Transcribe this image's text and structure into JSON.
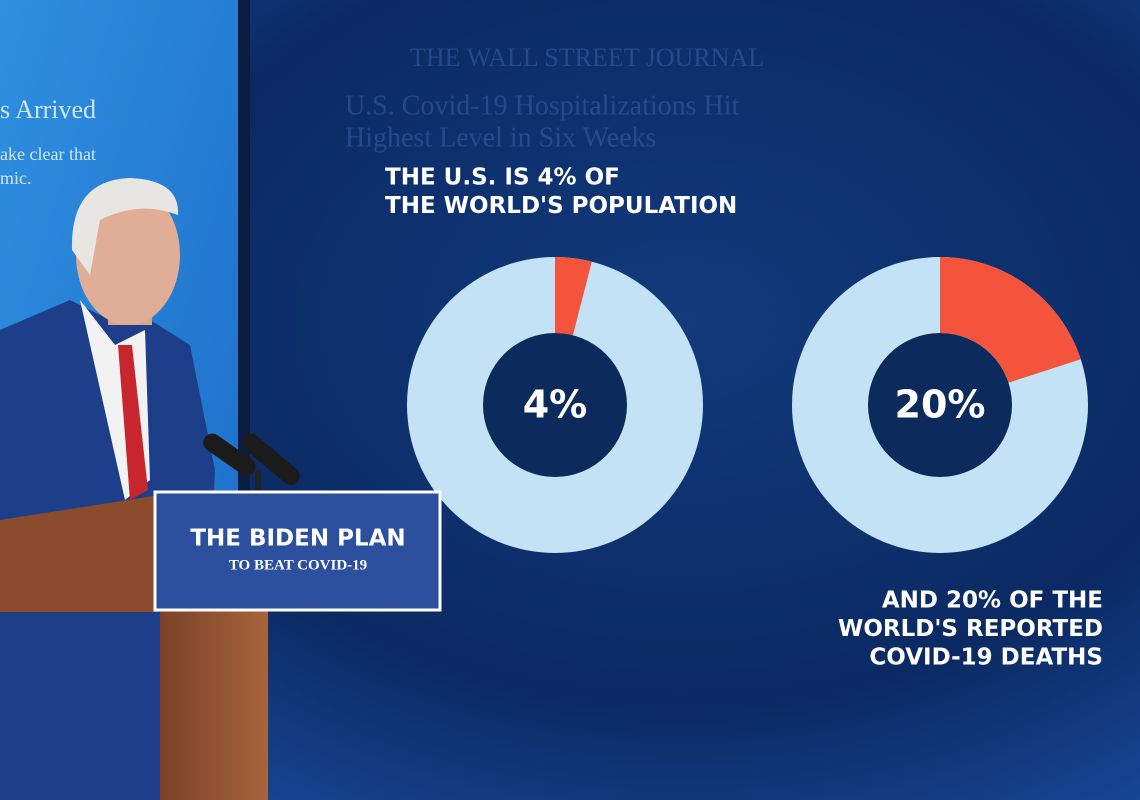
{
  "chart_data": [
    {
      "type": "pie",
      "title": [
        "THE U.S. IS 4% OF",
        "THE WORLD'S POPULATION"
      ],
      "values": [
        4
      ],
      "value_labels": [
        "4%"
      ],
      "color": "#f4533c",
      "ring_color": "#c3e2f6"
    },
    {
      "type": "pie",
      "title": [
        "AND 20% OF THE",
        "WORLD'S REPORTED",
        "COVID-19 DEATHS"
      ],
      "values": [
        20
      ],
      "value_labels": [
        "20%"
      ],
      "color": "#f4533c",
      "ring_color": "#c3e2f6"
    }
  ],
  "background_text": {
    "masthead": "THE WALL STREET JOURNAL",
    "headline": [
      "U.S. Covid-19 Hospitalizations Hit",
      "Highest Level in Six Weeks"
    ],
    "side_screen": [
      "s Arrived",
      "ake clear that",
      "mic."
    ]
  },
  "podium": {
    "title": "THE BIDEN PLAN",
    "subtitle": "TO BEAT COVID-19"
  }
}
